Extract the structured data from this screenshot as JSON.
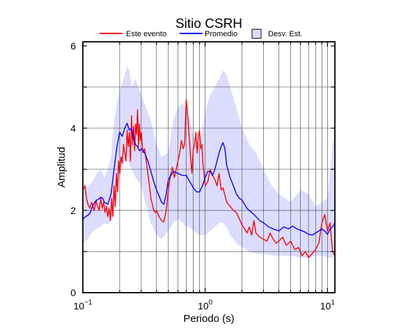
{
  "chart_data": {
    "type": "line",
    "title": "Sitio CSRH",
    "xlabel": "Periodo (s)",
    "ylabel": "Amplitud",
    "x_scale": "log",
    "xlim": [
      0.1,
      11.5
    ],
    "ylim": [
      0,
      6.1
    ],
    "x_ticks": [
      {
        "value": 0.1,
        "base": "10",
        "exp": "−1"
      },
      {
        "value": 1,
        "base": "10",
        "exp": "0"
      },
      {
        "value": 10,
        "base": "10",
        "exp": "1"
      }
    ],
    "y_ticks": [
      0,
      2,
      4,
      6
    ],
    "legend": {
      "position": "top",
      "entries": [
        {
          "label": "Este evento",
          "color": "#ff0000",
          "kind": "line"
        },
        {
          "label": "Promedio",
          "color": "#0000ff",
          "kind": "line"
        },
        {
          "label": "Desv. Est.",
          "color": "#dcdcff",
          "kind": "box"
        }
      ]
    },
    "grid": true,
    "series": [
      {
        "name": "Este evento",
        "color": "#ff0000",
        "x": [
          0.1,
          0.104,
          0.107,
          0.11,
          0.114,
          0.118,
          0.121,
          0.124,
          0.128,
          0.132,
          0.136,
          0.14,
          0.144,
          0.148,
          0.152,
          0.156,
          0.16,
          0.164,
          0.168,
          0.172,
          0.176,
          0.18,
          0.184,
          0.188,
          0.192,
          0.196,
          0.2,
          0.205,
          0.21,
          0.215,
          0.22,
          0.225,
          0.23,
          0.235,
          0.24,
          0.245,
          0.25,
          0.255,
          0.26,
          0.265,
          0.27,
          0.275,
          0.28,
          0.285,
          0.29,
          0.295,
          0.3,
          0.31,
          0.32,
          0.33,
          0.34,
          0.35,
          0.36,
          0.37,
          0.38,
          0.39,
          0.4,
          0.42,
          0.44,
          0.46,
          0.48,
          0.5,
          0.52,
          0.54,
          0.56,
          0.58,
          0.6,
          0.62,
          0.64,
          0.66,
          0.68,
          0.7,
          0.72,
          0.74,
          0.76,
          0.78,
          0.8,
          0.82,
          0.84,
          0.86,
          0.88,
          0.9,
          0.92,
          0.94,
          0.96,
          0.98,
          1.0,
          1.05,
          1.1,
          1.15,
          1.2,
          1.25,
          1.3,
          1.35,
          1.4,
          1.5,
          1.6,
          1.7,
          1.8,
          1.9,
          2.0,
          2.1,
          2.2,
          2.3,
          2.4,
          2.5,
          2.6,
          2.8,
          3.0,
          3.2,
          3.4,
          3.6,
          3.8,
          4.0,
          4.3,
          4.6,
          5.0,
          5.4,
          5.8,
          6.2,
          6.6,
          7.0,
          7.5,
          8.0,
          8.5,
          9.0,
          9.5,
          10.0,
          10.5,
          11.0,
          11.5
        ],
        "y": [
          2.5,
          2.6,
          2.3,
          2.15,
          2.05,
          2.2,
          2.1,
          2.0,
          2.25,
          2.1,
          2.0,
          2.3,
          2.05,
          2.2,
          1.95,
          2.1,
          1.85,
          2.05,
          1.75,
          2.3,
          1.85,
          2.6,
          2.1,
          2.9,
          2.45,
          3.2,
          2.9,
          3.3,
          3.15,
          3.6,
          3.4,
          3.2,
          3.95,
          3.55,
          3.9,
          3.2,
          4.3,
          3.6,
          4.05,
          3.45,
          4.1,
          3.85,
          4.45,
          3.55,
          4.1,
          3.7,
          3.9,
          3.4,
          3.5,
          3.2,
          2.9,
          2.6,
          2.3,
          2.15,
          2.0,
          1.95,
          2.0,
          1.85,
          1.75,
          1.72,
          2.0,
          2.5,
          2.85,
          3.05,
          2.8,
          3.0,
          3.2,
          3.4,
          3.7,
          3.5,
          3.6,
          4.7,
          4.3,
          3.8,
          3.3,
          2.9,
          3.5,
          3.6,
          3.9,
          3.4,
          3.8,
          3.95,
          3.5,
          3.6,
          3.1,
          2.9,
          2.6,
          2.7,
          3.0,
          2.85,
          2.75,
          2.6,
          2.9,
          2.5,
          2.55,
          2.2,
          2.1,
          2.0,
          1.95,
          1.8,
          1.65,
          1.55,
          1.45,
          1.6,
          1.4,
          1.75,
          1.45,
          1.35,
          1.3,
          1.25,
          1.45,
          1.3,
          1.2,
          1.25,
          1.35,
          1.15,
          1.25,
          1.05,
          1.1,
          0.9,
          1.0,
          0.85,
          0.95,
          1.05,
          1.2,
          1.7,
          1.9,
          1.5,
          1.7,
          1.0,
          0.9
        ]
      },
      {
        "name": "Promedio",
        "color": "#0000ff",
        "x": [
          0.1,
          0.105,
          0.11,
          0.115,
          0.12,
          0.125,
          0.13,
          0.135,
          0.14,
          0.145,
          0.15,
          0.16,
          0.17,
          0.18,
          0.19,
          0.2,
          0.21,
          0.22,
          0.23,
          0.24,
          0.25,
          0.26,
          0.27,
          0.28,
          0.29,
          0.3,
          0.32,
          0.34,
          0.36,
          0.38,
          0.4,
          0.42,
          0.44,
          0.46,
          0.48,
          0.5,
          0.55,
          0.6,
          0.65,
          0.7,
          0.75,
          0.8,
          0.85,
          0.9,
          0.95,
          1.0,
          1.05,
          1.1,
          1.15,
          1.2,
          1.25,
          1.3,
          1.35,
          1.4,
          1.45,
          1.5,
          1.6,
          1.7,
          1.8,
          1.9,
          2.0,
          2.2,
          2.4,
          2.6,
          2.8,
          3.0,
          3.3,
          3.6,
          4.0,
          4.4,
          4.8,
          5.2,
          5.6,
          6.0,
          6.5,
          7.0,
          7.5,
          8.0,
          8.5,
          9.0,
          9.5,
          10.0,
          10.5,
          11.0,
          11.5
        ],
        "y": [
          1.78,
          1.85,
          1.88,
          1.95,
          2.1,
          2.2,
          2.25,
          2.28,
          2.32,
          2.3,
          2.2,
          2.15,
          2.4,
          3.0,
          3.55,
          3.9,
          3.8,
          4.0,
          4.12,
          3.95,
          4.0,
          3.75,
          3.6,
          3.55,
          3.45,
          3.5,
          3.4,
          3.2,
          2.95,
          2.7,
          2.5,
          2.35,
          2.2,
          2.15,
          2.4,
          2.75,
          2.95,
          2.9,
          2.85,
          2.85,
          2.7,
          2.55,
          2.45,
          2.45,
          2.6,
          2.8,
          2.95,
          2.95,
          2.85,
          3.0,
          3.2,
          3.4,
          3.55,
          3.65,
          3.5,
          3.1,
          2.8,
          2.6,
          2.4,
          2.3,
          2.25,
          2.05,
          1.95,
          1.85,
          1.75,
          1.7,
          1.6,
          1.55,
          1.5,
          1.6,
          1.55,
          1.62,
          1.55,
          1.52,
          1.48,
          1.42,
          1.4,
          1.45,
          1.5,
          1.55,
          1.5,
          1.42,
          1.55,
          1.6,
          1.7
        ]
      }
    ],
    "band": {
      "name": "Desv. Est.",
      "color": "#dcdcff",
      "x": [
        0.1,
        0.11,
        0.12,
        0.13,
        0.14,
        0.15,
        0.16,
        0.17,
        0.18,
        0.19,
        0.2,
        0.21,
        0.22,
        0.23,
        0.24,
        0.25,
        0.27,
        0.3,
        0.33,
        0.36,
        0.4,
        0.44,
        0.5,
        0.55,
        0.6,
        0.65,
        0.7,
        0.75,
        0.8,
        0.9,
        1.0,
        1.1,
        1.2,
        1.3,
        1.4,
        1.5,
        1.6,
        1.8,
        2.0,
        2.3,
        2.6,
        3.0,
        3.5,
        4.0,
        5.0,
        6.0,
        7.0,
        8.0,
        9.0,
        10.0,
        11.0,
        11.5
      ],
      "upper": [
        2.5,
        2.6,
        2.7,
        2.9,
        3.0,
        2.8,
        3.0,
        3.3,
        4.2,
        4.6,
        4.9,
        5.1,
        5.3,
        5.5,
        5.4,
        5.0,
        5.2,
        4.8,
        4.5,
        4.2,
        3.6,
        3.3,
        3.4,
        4.2,
        4.5,
        4.6,
        4.5,
        4.2,
        3.8,
        3.6,
        4.4,
        4.8,
        5.0,
        5.2,
        5.4,
        5.3,
        5.0,
        4.5,
        4.0,
        3.6,
        3.4,
        3.0,
        2.6,
        2.4,
        2.2,
        2.5,
        2.4,
        2.1,
        2.2,
        2.3,
        3.6,
        4.0
      ],
      "lower": [
        1.2,
        1.3,
        1.5,
        1.55,
        1.6,
        1.7,
        1.65,
        1.75,
        2.0,
        2.3,
        2.8,
        3.0,
        3.2,
        3.3,
        3.1,
        3.0,
        2.8,
        2.6,
        2.1,
        1.7,
        1.4,
        1.3,
        1.5,
        1.7,
        1.8,
        1.7,
        1.6,
        1.6,
        1.5,
        1.4,
        1.4,
        1.5,
        1.6,
        1.7,
        1.7,
        1.6,
        1.4,
        1.2,
        1.1,
        1.0,
        0.95,
        0.95,
        0.9,
        0.9,
        0.9,
        0.85,
        0.85,
        0.9,
        0.9,
        0.85,
        0.85,
        0.9
      ]
    }
  }
}
